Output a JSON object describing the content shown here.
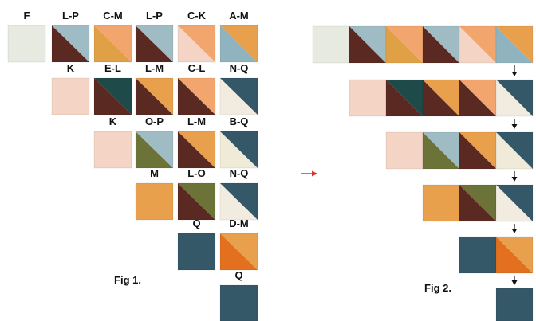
{
  "fig1": {
    "caption": "Fig 1.",
    "rows": [
      [
        {
          "label": "F",
          "colors": [
            "#e6eae0"
          ]
        },
        {
          "label": "L-P",
          "colors": [
            "#5a2a22",
            "#9fbcc4"
          ]
        },
        {
          "label": "C-M",
          "colors": [
            "#e0a046",
            "#f2a66e"
          ]
        },
        {
          "label": "L-P",
          "colors": [
            "#5a2a22",
            "#9fbcc4"
          ]
        },
        {
          "label": "C-K",
          "colors": [
            "#f4d4c4",
            "#f2a66e"
          ]
        },
        {
          "label": "A-M",
          "colors": [
            "#8fb4c0",
            "#e8a04c"
          ]
        }
      ],
      [
        {
          "label": "K",
          "colors": [
            "#f4d4c4"
          ]
        },
        {
          "label": "E-L",
          "colors": [
            "#5a2a22",
            "#1f4a4a"
          ]
        },
        {
          "label": "L-M",
          "colors": [
            "#5a2a22",
            "#e8a04c"
          ]
        },
        {
          "label": "C-L",
          "colors": [
            "#5a2a22",
            "#f2a66e"
          ]
        },
        {
          "label": "N-Q",
          "colors": [
            "#f2ece0",
            "#345868"
          ]
        }
      ],
      [
        {
          "label": "K",
          "colors": [
            "#f4d4c4"
          ]
        },
        {
          "label": "O-P",
          "colors": [
            "#6b7338",
            "#9fbcc4"
          ]
        },
        {
          "label": "L-M",
          "colors": [
            "#5a2a22",
            "#e8a04c"
          ]
        },
        {
          "label": "B-Q",
          "colors": [
            "#f0ead8",
            "#345868"
          ]
        }
      ],
      [
        {
          "label": "M",
          "colors": [
            "#e8a04c"
          ]
        },
        {
          "label": "L-O",
          "colors": [
            "#5a2a22",
            "#6b7338"
          ]
        },
        {
          "label": "N-Q",
          "colors": [
            "#f2ece0",
            "#345868"
          ]
        }
      ],
      [
        {
          "label": "Q",
          "colors": [
            "#345868"
          ]
        },
        {
          "label": "D-M",
          "colors": [
            "#e2701f",
            "#e8a04c"
          ]
        }
      ],
      [
        {
          "label": "Q",
          "colors": [
            "#345868"
          ]
        }
      ]
    ]
  },
  "fig2": {
    "caption": "Fig 2."
  }
}
